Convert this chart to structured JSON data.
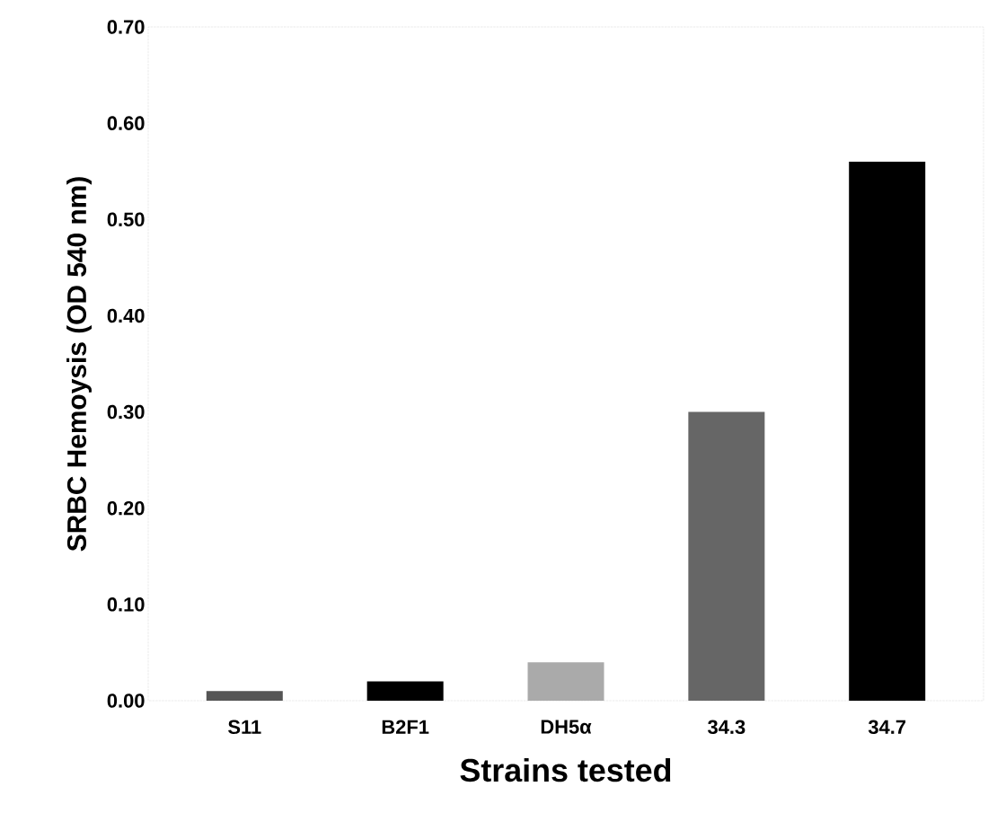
{
  "chart_data": {
    "type": "bar",
    "xlabel": "Strains tested",
    "ylabel": "SRBC Hemoysis (OD 540 nm)",
    "categories": [
      "S11",
      "B2F1",
      "DH5α",
      "34.3",
      "34.7"
    ],
    "values": [
      0.01,
      0.02,
      0.04,
      0.3,
      0.56
    ],
    "colors": [
      "#555555",
      "#000000",
      "#aaaaaa",
      "#666666",
      "#000000"
    ],
    "ylim": [
      0,
      0.7
    ],
    "yticks": [
      {
        "value": 0,
        "label": "0.00"
      },
      {
        "value": 0.1,
        "label": "0.10"
      },
      {
        "value": 0.2,
        "label": "0.20"
      },
      {
        "value": 0.3,
        "label": "0.30"
      },
      {
        "value": 0.4,
        "label": "0.40"
      },
      {
        "value": 0.5,
        "label": "0.50"
      },
      {
        "value": 0.6,
        "label": "0.60"
      },
      {
        "value": 0.7,
        "label": "0.70"
      }
    ],
    "grid": false
  }
}
